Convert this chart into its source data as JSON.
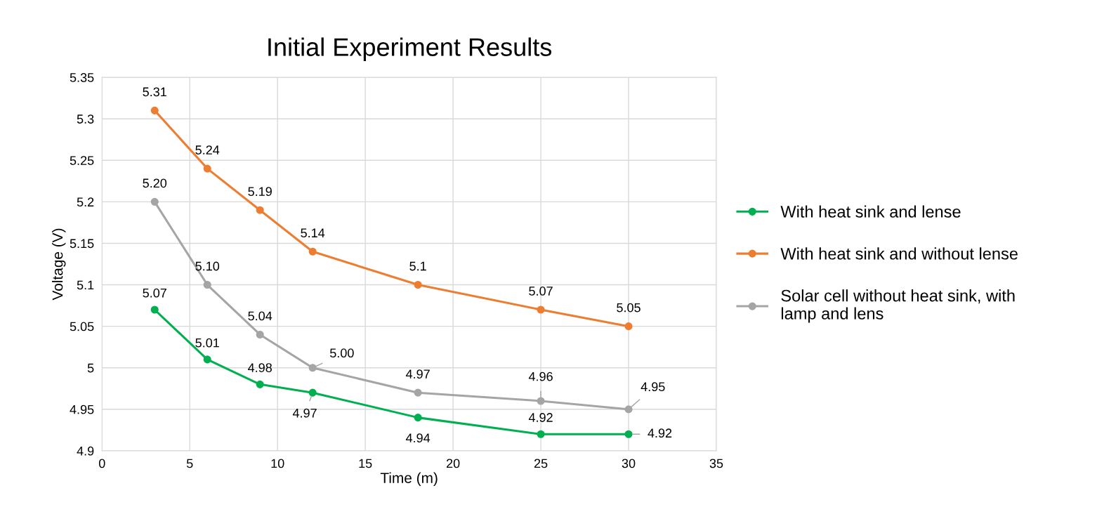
{
  "chart_data": {
    "type": "line",
    "title": "Initial Experiment Results",
    "xlabel": "Time (m)",
    "ylabel": "Voltage (V)",
    "x": [
      3,
      6,
      9,
      12,
      18,
      25,
      30
    ],
    "series": [
      {
        "name": "With heat sink and lense",
        "color": "#00b050",
        "values": [
          5.07,
          5.01,
          4.98,
          4.97,
          4.94,
          4.92,
          4.92
        ],
        "value_labels": [
          "5.07",
          "5.01",
          "4.98",
          "4.97",
          "4.94",
          "4.92",
          "4.92"
        ]
      },
      {
        "name": "With heat sink and without lense",
        "color": "#ed7d31",
        "values": [
          5.31,
          5.24,
          5.19,
          5.14,
          5.1,
          5.07,
          5.05
        ],
        "value_labels": [
          "5.31",
          "5.24",
          "5.19",
          "5.14",
          "5.1",
          "5.07",
          "5.05"
        ]
      },
      {
        "name": "Solar cell without heat sink, with\nlamp and lens",
        "color": "#a5a5a5",
        "values": [
          5.2,
          5.1,
          5.04,
          5.0,
          4.97,
          4.96,
          4.95
        ],
        "value_labels": [
          "5.20",
          "5.10",
          "5.04",
          "5.00",
          "4.97",
          "4.96",
          "4.95"
        ]
      }
    ],
    "xlim": [
      0,
      35
    ],
    "xticks": [
      0,
      5,
      10,
      15,
      20,
      25,
      30,
      35
    ],
    "ylim": [
      4.9,
      5.35
    ],
    "yticks": [
      4.9,
      4.95,
      5,
      5.05,
      5.1,
      5.15,
      5.2,
      5.25,
      5.3,
      5.35
    ],
    "grid": true,
    "legend": "right",
    "marker": "circle",
    "line_style": "solid"
  }
}
